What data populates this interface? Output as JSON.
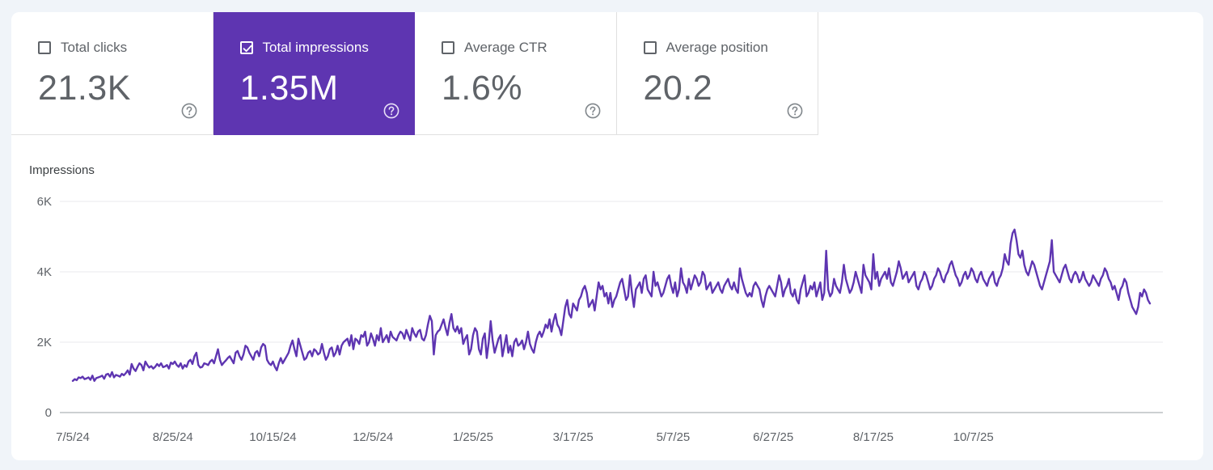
{
  "metrics": [
    {
      "label": "Total clicks",
      "value": "21.3K",
      "selected": false
    },
    {
      "label": "Total impressions",
      "value": "1.35M",
      "selected": true
    },
    {
      "label": "Average CTR",
      "value": "1.6%",
      "selected": false
    },
    {
      "label": "Average position",
      "value": "20.2",
      "selected": false
    }
  ],
  "colors": {
    "accent": "#5e35b1",
    "line": "#5e35b1",
    "grid": "#e8eaed"
  },
  "icons": {
    "help": "help-circle-icon",
    "check": "check-icon"
  },
  "chart_data": {
    "type": "line",
    "title": "",
    "ylabel": "Impressions",
    "xlabel": "",
    "ylim": [
      0,
      6000
    ],
    "y_ticks": [
      0,
      2000,
      4000,
      6000
    ],
    "y_tick_labels": [
      "0",
      "2K",
      "4K",
      "6K"
    ],
    "x_tick_labels": [
      "7/5/24",
      "8/25/24",
      "10/15/24",
      "12/5/24",
      "1/25/25",
      "3/17/25",
      "5/7/25",
      "6/27/25",
      "8/17/25",
      "10/7/25"
    ],
    "series": [
      {
        "name": "Impressions",
        "x_start": "7/5/24",
        "x_interval_days": 1,
        "values": [
          900,
          950,
          920,
          1000,
          980,
          1020,
          950,
          970,
          1000,
          930,
          1050,
          900,
          980,
          1000,
          1020,
          1050,
          960,
          1080,
          1100,
          1020,
          1150,
          1000,
          1070,
          1050,
          1020,
          1100,
          1060,
          1120,
          1200,
          1080,
          1380,
          1250,
          1180,
          1300,
          1400,
          1350,
          1200,
          1450,
          1350,
          1280,
          1320,
          1250,
          1300,
          1380,
          1320,
          1400,
          1290,
          1310,
          1350,
          1250,
          1420,
          1380,
          1450,
          1350,
          1300,
          1400,
          1250,
          1350,
          1300,
          1450,
          1500,
          1380,
          1600,
          1700,
          1350,
          1280,
          1300,
          1400,
          1380,
          1350,
          1450,
          1500,
          1400,
          1600,
          1800,
          1500,
          1350,
          1420,
          1480,
          1550,
          1600,
          1500,
          1400,
          1700,
          1750,
          1600,
          1500,
          1650,
          1900,
          1850,
          1700,
          1600,
          1500,
          1700,
          1750,
          1600,
          1850,
          1950,
          1900,
          1500,
          1400,
          1350,
          1450,
          1300,
          1200,
          1400,
          1550,
          1400,
          1500,
          1600,
          1700,
          1900,
          2050,
          1800,
          1600,
          2100,
          1900,
          1700,
          1500,
          1550,
          1700,
          1750,
          1600,
          1800,
          1750,
          1650,
          1700,
          1950,
          1700,
          1500,
          1600,
          1800,
          1850,
          1600,
          1700,
          1900,
          1650,
          1900,
          2000,
          2050,
          2100,
          1900,
          2200,
          1800,
          2100,
          2050,
          1950,
          2200,
          2150,
          2300,
          1900,
          2000,
          2250,
          2100,
          1900,
          2200,
          2050,
          2400,
          2000,
          2100,
          2200,
          2000,
          2300,
          2150,
          2100,
          2050,
          2200,
          2300,
          2250,
          2100,
          2350,
          2200,
          2050,
          2400,
          2250,
          2150,
          2300,
          2350,
          2100,
          2050,
          2200,
          2500,
          2750,
          2600,
          1650,
          2200,
          2300,
          2350,
          2500,
          2650,
          2400,
          2200,
          2550,
          2800,
          2400,
          2300,
          2450,
          2250,
          2400,
          1950,
          2100,
          2200,
          1650,
          1800,
          2200,
          2400,
          2300,
          1800,
          1650,
          2100,
          2250,
          1550,
          2000,
          2600,
          2050,
          1700,
          1900,
          2100,
          2200,
          1600,
          1900,
          2200,
          1700,
          1900,
          1600,
          2000,
          2100,
          1900,
          1950,
          2050,
          1800,
          2000,
          2300,
          1950,
          1800,
          1700,
          2000,
          2200,
          2300,
          2150,
          2300,
          2500,
          2400,
          2650,
          2300,
          2600,
          2800,
          2500,
          2400,
          2200,
          2600,
          3000,
          3200,
          2800,
          2700,
          3100,
          3000,
          2900,
          3200,
          3300,
          3500,
          3600,
          3400,
          3000,
          3100,
          3200,
          2900,
          3300,
          3700,
          3500,
          3600,
          3300,
          3400,
          3100,
          3400,
          3000,
          3200,
          3300,
          3500,
          3700,
          3800,
          3500,
          3200,
          3300,
          3900,
          3400,
          3000,
          3500,
          3600,
          3700,
          3400,
          3800,
          3900,
          3500,
          3400,
          3300,
          4000,
          3600,
          3700,
          3500,
          3300,
          3400,
          3600,
          3800,
          3900,
          3600,
          3400,
          3700,
          3300,
          3500,
          4100,
          3700,
          3600,
          3400,
          3800,
          3500,
          3700,
          3900,
          3800,
          3600,
          3700,
          4000,
          3900,
          3500,
          3600,
          3700,
          3400,
          3500,
          3600,
          3700,
          3500,
          3400,
          3600,
          3700,
          3800,
          3600,
          3500,
          3700,
          3500,
          3400,
          4100,
          3800,
          3600,
          3400,
          3300,
          3400,
          3300,
          3600,
          3700,
          3600,
          3500,
          3200,
          3000,
          3300,
          3500,
          3600,
          3500,
          3400,
          3300,
          3600,
          3900,
          3700,
          3300,
          3500,
          3600,
          3800,
          3400,
          3300,
          3500,
          3200,
          3100,
          3500,
          3700,
          3900,
          3300,
          3400,
          3600,
          3500,
          3700,
          3300,
          3500,
          3700,
          3200,
          3400,
          4600,
          3500,
          3300,
          3400,
          3800,
          3600,
          3500,
          3400,
          3700,
          4200,
          3800,
          3600,
          3400,
          3500,
          3700,
          4000,
          3800,
          3600,
          3400,
          4200,
          3900,
          3800,
          3700,
          3500,
          4500,
          3800,
          4000,
          3600,
          3800,
          3900,
          4000,
          3800,
          4100,
          3700,
          3600,
          3800,
          4000,
          4300,
          4100,
          3800,
          3900,
          4000,
          3700,
          3800,
          3900,
          4000,
          3600,
          3500,
          3700,
          3800,
          4000,
          3900,
          3700,
          3500,
          3600,
          3800,
          3900,
          4100,
          4000,
          3800,
          3700,
          3900,
          4000,
          4200,
          4300,
          4100,
          3900,
          3800,
          3600,
          3700,
          3900,
          4000,
          3800,
          3900,
          4100,
          4000,
          3800,
          3700,
          3900,
          4000,
          3800,
          3700,
          3600,
          3800,
          3900,
          4000,
          3700,
          3600,
          3800,
          3900,
          4100,
          4500,
          4300,
          4200,
          4800,
          5100,
          5200,
          4900,
          4500,
          4400,
          4600,
          4200,
          4000,
          3900,
          4100,
          4300,
          4200,
          4000,
          3800,
          3600,
          3500,
          3700,
          3900,
          4100,
          4300,
          4900,
          4000,
          3900,
          3800,
          3700,
          3900,
          4100,
          4200,
          4000,
          3800,
          3700,
          3900,
          4000,
          3900,
          3700,
          3800,
          4000,
          3800,
          3700,
          3600,
          3700,
          3900,
          3800,
          3700,
          3600,
          3800,
          3900,
          4100,
          4000,
          3800,
          3700,
          3500,
          3600,
          3400,
          3200,
          3500,
          3600,
          3800,
          3700,
          3400,
          3200,
          3000,
          2900,
          2800,
          3000,
          3400,
          3300,
          3500,
          3400,
          3200,
          3100
        ]
      }
    ]
  }
}
